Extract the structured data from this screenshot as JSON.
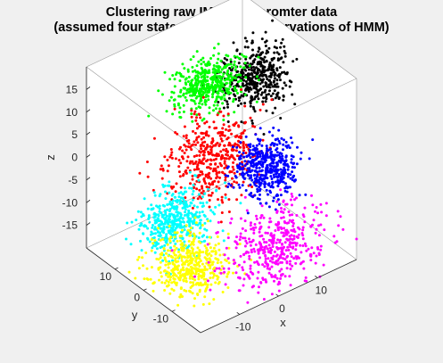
{
  "chart_data": {
    "type": "scatter",
    "dimensions": "3d",
    "title": [
      "Clustering raw IMU acceleromter data",
      "(assumed four states and seven observations of HMM)"
    ],
    "xlabel": "x",
    "ylabel": "y",
    "zlabel": "z",
    "xlim": [
      -20,
      20
    ],
    "ylim": [
      -20,
      20
    ],
    "zlim": [
      -20,
      20
    ],
    "xticks": [
      "-10",
      "0",
      "10"
    ],
    "yticks": [
      "-10",
      "0",
      "10"
    ],
    "zticks": [
      "-15",
      "-10",
      "-5",
      "0",
      "5",
      "10",
      "15"
    ],
    "xtick_values": [
      -10,
      0,
      10
    ],
    "ytick_values": [
      -10,
      0,
      10
    ],
    "ztick_values": [
      -15,
      -10,
      -5,
      0,
      5,
      10,
      15
    ],
    "grid": false,
    "box": true,
    "view": "isometric 3-D (azimuth -37.5, elevation 30)",
    "series": [
      {
        "color": "#000000",
        "center": [
          13,
          6,
          11
        ],
        "spread": [
          4,
          3,
          3
        ]
      },
      {
        "color": "#00ff00",
        "center": [
          4,
          10,
          11
        ],
        "spread": [
          4,
          3,
          2
        ]
      },
      {
        "color": "#ff0000",
        "center": [
          0,
          3,
          0
        ],
        "spread": [
          5,
          4,
          4
        ]
      },
      {
        "color": "#0000ff",
        "center": [
          8,
          -5,
          -2
        ],
        "spread": [
          3,
          3,
          3
        ]
      },
      {
        "color": "#00ffff",
        "center": [
          -8,
          5,
          -12
        ],
        "spread": [
          4,
          3,
          3
        ]
      },
      {
        "color": "#ffff00",
        "center": [
          -10,
          -2,
          -18
        ],
        "spread": [
          4,
          4,
          3
        ]
      },
      {
        "color": "#ff00ff",
        "center": [
          5,
          -12,
          -15
        ],
        "spread": [
          6,
          4,
          4
        ]
      }
    ]
  }
}
